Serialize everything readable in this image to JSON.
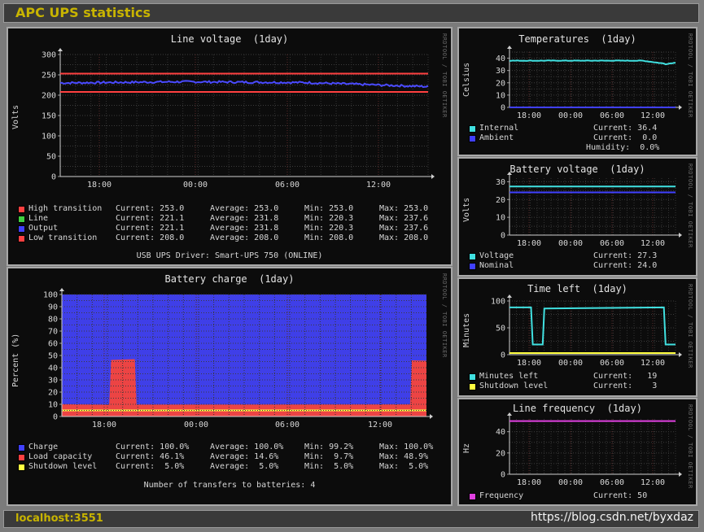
{
  "title": "APC UPS statistics",
  "footer": {
    "host": "localhost:3551",
    "watermark": "https://blog.csdn.net/byxdaz"
  },
  "side_text": "RRDTOOL / TOBI OETIKER",
  "xticks": [
    "18:00",
    "00:00",
    "06:00",
    "12:00"
  ],
  "line_voltage": {
    "title": "Line voltage  (1day)",
    "ylabel": "Volts",
    "yticks": [
      "300",
      "250",
      "200",
      "150",
      "100",
      "50",
      "0"
    ],
    "legend": [
      {
        "name": "High transition",
        "color": "#ff4040",
        "current": "Current: 253.0",
        "average": "Average: 253.0",
        "min": "Min: 253.0",
        "max": "Max: 253.0"
      },
      {
        "name": "Line",
        "color": "#40d040",
        "current": "Current: 221.1",
        "average": "Average: 231.8",
        "min": "Min: 220.3",
        "max": "Max: 237.6"
      },
      {
        "name": "Output",
        "color": "#4040ff",
        "current": "Current: 221.1",
        "average": "Average: 231.8",
        "min": "Min: 220.3",
        "max": "Max: 237.6"
      },
      {
        "name": "Low transition",
        "color": "#ff4040",
        "current": "Current: 208.0",
        "average": "Average: 208.0",
        "min": "Min: 208.0",
        "max": "Max: 208.0"
      }
    ],
    "note": "USB UPS Driver: Smart-UPS 750 (ONLINE)"
  },
  "battery_charge": {
    "title": "Battery charge  (1day)",
    "ylabel": "Percent (%)",
    "yticks": [
      "100",
      "90",
      "80",
      "70",
      "60",
      "50",
      "40",
      "30",
      "20",
      "10",
      "0"
    ],
    "legend": [
      {
        "name": "Charge",
        "color": "#4040ff",
        "current": "Current: 100.0%",
        "average": "Average: 100.0%",
        "min": "Min: 99.2%",
        "max": "Max: 100.0%"
      },
      {
        "name": "Load capacity",
        "color": "#ff4040",
        "current": "Current: 46.1%",
        "average": "Average: 14.6%",
        "min": "Min:  9.7%",
        "max": "Max: 48.9%"
      },
      {
        "name": "Shutdown level",
        "color": "#ffff40",
        "current": "Current:  5.0%",
        "average": "Average:  5.0%",
        "min": "Min:  5.0%",
        "max": "Max:  5.0%"
      }
    ],
    "note": "Number of transfers to batteries: 4"
  },
  "temperatures": {
    "title": "Temperatures  (1day)",
    "ylabel": "Celsius",
    "yticks": [
      "40",
      "30",
      "20",
      "10",
      "0"
    ],
    "legend": [
      {
        "name": "Internal",
        "color": "#40e0e0",
        "value": "Current: 36.4"
      },
      {
        "name": "Ambient",
        "color": "#4040ff",
        "value": "Current:  0.0"
      }
    ],
    "extra": "Humidity:  0.0%"
  },
  "battery_voltage": {
    "title": "Battery voltage  (1day)",
    "ylabel": "Volts",
    "yticks": [
      "30",
      "20",
      "10",
      "0"
    ],
    "legend": [
      {
        "name": "Voltage",
        "color": "#40e0e0",
        "value": "Current: 27.3"
      },
      {
        "name": "Nominal",
        "color": "#4040ff",
        "value": "Current: 24.0"
      }
    ]
  },
  "time_left": {
    "title": "Time left  (1day)",
    "ylabel": "Minutes",
    "yticks": [
      "100",
      "50",
      "0"
    ],
    "legend": [
      {
        "name": "Minutes left",
        "color": "#40e0e0",
        "value": "Current:   19"
      },
      {
        "name": "Shutdown level",
        "color": "#ffff40",
        "value": "Current:    3"
      }
    ]
  },
  "line_frequency": {
    "title": "Line frequency  (1day)",
    "ylabel": "Hz",
    "yticks": [
      "40",
      "20",
      "0"
    ],
    "legend": [
      {
        "name": "Frequency",
        "color": "#e040e0",
        "value": "Current: 50"
      }
    ]
  },
  "chart_data": [
    {
      "type": "line",
      "title": "Line voltage  (1day)",
      "ylabel": "Volts",
      "ylim": [
        0,
        300
      ],
      "x": [
        "18:00",
        "00:00",
        "06:00",
        "12:00"
      ],
      "series": [
        {
          "name": "High transition",
          "values": [
            253,
            253,
            253,
            253
          ]
        },
        {
          "name": "Output",
          "values": [
            230,
            233,
            231,
            221
          ]
        },
        {
          "name": "Low transition",
          "values": [
            208,
            208,
            208,
            208
          ]
        }
      ]
    },
    {
      "type": "area",
      "title": "Battery charge  (1day)",
      "ylabel": "Percent (%)",
      "ylim": [
        0,
        100
      ],
      "x": [
        "18:00",
        "00:00",
        "06:00",
        "12:00"
      ],
      "series": [
        {
          "name": "Charge",
          "values": [
            100,
            100,
            100,
            100
          ]
        },
        {
          "name": "Load capacity",
          "values": [
            47,
            10,
            10,
            46
          ]
        },
        {
          "name": "Shutdown level",
          "values": [
            5,
            5,
            5,
            5
          ]
        }
      ]
    },
    {
      "type": "line",
      "title": "Temperatures  (1day)",
      "ylabel": "Celsius",
      "ylim": [
        0,
        45
      ],
      "series": [
        {
          "name": "Internal",
          "values": [
            37.5,
            38,
            38,
            38,
            36.4
          ]
        },
        {
          "name": "Ambient",
          "values": [
            0,
            0,
            0,
            0,
            0
          ]
        }
      ]
    },
    {
      "type": "line",
      "title": "Battery voltage  (1day)",
      "ylabel": "Volts",
      "ylim": [
        0,
        30
      ],
      "series": [
        {
          "name": "Voltage",
          "values": [
            27.3,
            27.3,
            27.3,
            27.3,
            27.3
          ]
        },
        {
          "name": "Nominal",
          "values": [
            24,
            24,
            24,
            24,
            24
          ]
        }
      ]
    },
    {
      "type": "line",
      "title": "Time left  (1day)",
      "ylabel": "Minutes",
      "ylim": [
        0,
        100
      ],
      "series": [
        {
          "name": "Minutes left",
          "values": [
            88,
            19,
            88,
            88,
            19
          ]
        },
        {
          "name": "Shutdown level",
          "values": [
            3,
            3,
            3,
            3,
            3
          ]
        }
      ]
    },
    {
      "type": "line",
      "title": "Line frequency  (1day)",
      "ylabel": "Hz",
      "ylim": [
        0,
        50
      ],
      "series": [
        {
          "name": "Frequency",
          "values": [
            50,
            50,
            50,
            50,
            50
          ]
        }
      ]
    }
  ]
}
